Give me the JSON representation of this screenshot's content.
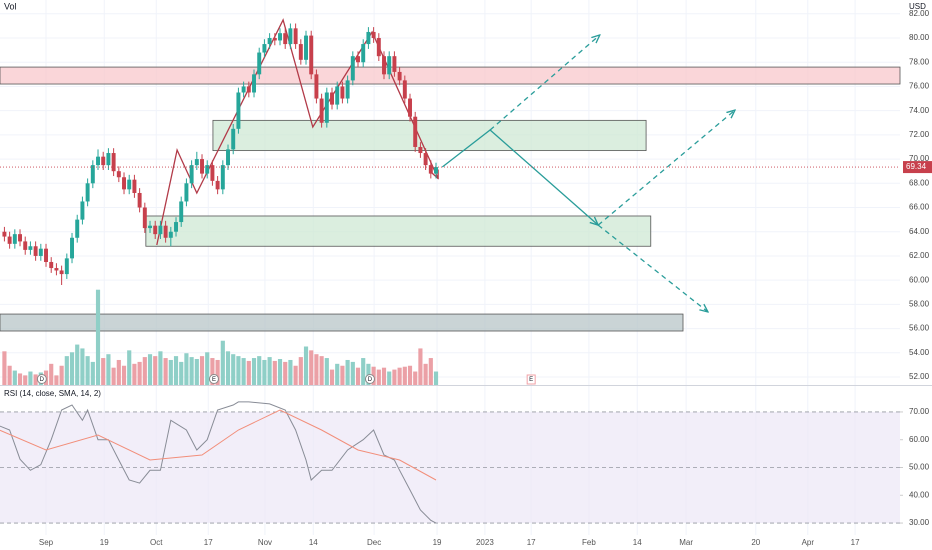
{
  "chart_data": [
    {
      "type": "candlestick",
      "label": "Vol",
      "currency": "USD",
      "up_color": "#26a69a",
      "down_color": "#c7404c",
      "volume_up_color": "#8fcfc7",
      "volume_down_color": "#eba0a6",
      "x": [
        -8,
        -7,
        -6,
        -5,
        -4,
        -3,
        -2,
        -1,
        0,
        1,
        2,
        3,
        4,
        5,
        6,
        7,
        8,
        9,
        10,
        11,
        12,
        13,
        14,
        15,
        16,
        17,
        18,
        19,
        20,
        21,
        22,
        23,
        24,
        25,
        26,
        27,
        28,
        29,
        30,
        31,
        32,
        33,
        34,
        35,
        36,
        37,
        38,
        39,
        40,
        41,
        42,
        43,
        44,
        45,
        46,
        47,
        48,
        49,
        50,
        51,
        52,
        53,
        54,
        55,
        56,
        57,
        58,
        59,
        60,
        61,
        62,
        63,
        64,
        65,
        66,
        67,
        68,
        69,
        70,
        71,
        72,
        73,
        74,
        75
      ],
      "candles": [
        [
          64.0,
          64.4,
          63.2,
          63.6
        ],
        [
          63.6,
          64.0,
          62.6,
          63.0
        ],
        [
          63.0,
          64.2,
          62.6,
          63.8
        ],
        [
          63.8,
          64.2,
          62.8,
          63.2
        ],
        [
          63.2,
          63.6,
          62.1,
          62.5
        ],
        [
          62.5,
          63.2,
          62.1,
          62.8
        ],
        [
          62.8,
          63.2,
          61.6,
          62.0
        ],
        [
          62.0,
          63.0,
          61.6,
          62.6
        ],
        [
          62.6,
          63.0,
          61.1,
          61.5
        ],
        [
          61.5,
          61.9,
          60.6,
          61.0
        ],
        [
          61.0,
          61.4,
          60.4,
          60.8
        ],
        [
          60.8,
          61.2,
          59.6,
          60.5
        ],
        [
          60.5,
          62.2,
          60.1,
          61.8
        ],
        [
          61.8,
          63.9,
          61.4,
          63.5
        ],
        [
          63.5,
          65.4,
          63.1,
          65.0
        ],
        [
          65.0,
          66.9,
          64.6,
          66.5
        ],
        [
          66.5,
          68.4,
          66.1,
          68.0
        ],
        [
          68.0,
          69.9,
          67.6,
          69.5
        ],
        [
          69.5,
          70.8,
          69.1,
          70.2
        ],
        [
          70.2,
          70.6,
          69.1,
          69.5
        ],
        [
          69.5,
          70.9,
          69.1,
          70.5
        ],
        [
          70.5,
          70.9,
          68.6,
          69.0
        ],
        [
          69.0,
          69.4,
          68.1,
          68.5
        ],
        [
          68.5,
          68.9,
          67.1,
          67.5
        ],
        [
          67.5,
          68.7,
          67.1,
          68.3
        ],
        [
          68.3,
          68.7,
          66.8,
          67.2
        ],
        [
          67.2,
          67.6,
          65.6,
          66.0
        ],
        [
          66.0,
          66.4,
          63.9,
          64.3
        ],
        [
          64.3,
          64.9,
          63.9,
          64.5
        ],
        [
          64.5,
          64.9,
          63.4,
          63.8
        ],
        [
          63.8,
          64.9,
          63.4,
          64.5
        ],
        [
          64.5,
          64.9,
          63.1,
          63.5
        ],
        [
          63.5,
          64.4,
          62.8,
          64.0
        ],
        [
          64.0,
          65.2,
          63.6,
          64.8
        ],
        [
          64.8,
          66.9,
          64.4,
          66.5
        ],
        [
          66.5,
          68.4,
          66.1,
          68.0
        ],
        [
          68.0,
          69.9,
          67.6,
          69.5
        ],
        [
          69.5,
          70.6,
          69.1,
          70.0
        ],
        [
          70.0,
          70.4,
          68.4,
          68.8
        ],
        [
          68.8,
          69.9,
          68.4,
          69.5
        ],
        [
          69.5,
          69.9,
          67.8,
          68.2
        ],
        [
          68.2,
          68.6,
          67.1,
          67.5
        ],
        [
          67.5,
          69.9,
          67.1,
          69.5
        ],
        [
          69.5,
          71.2,
          69.1,
          70.8
        ],
        [
          70.8,
          72.9,
          70.4,
          72.5
        ],
        [
          72.5,
          75.9,
          72.1,
          75.5
        ],
        [
          75.5,
          76.4,
          75.1,
          76.0
        ],
        [
          76.0,
          76.4,
          75.1,
          75.5
        ],
        [
          75.5,
          77.4,
          75.1,
          77.0
        ],
        [
          77.0,
          79.2,
          76.6,
          78.8
        ],
        [
          78.8,
          79.9,
          78.4,
          79.5
        ],
        [
          79.5,
          80.4,
          79.1,
          80.0
        ],
        [
          80.0,
          80.4,
          79.4,
          79.8
        ],
        [
          79.8,
          80.8,
          79.4,
          80.4
        ],
        [
          80.4,
          80.8,
          79.1,
          79.5
        ],
        [
          79.5,
          81.2,
          79.1,
          80.8
        ],
        [
          80.8,
          81.2,
          79.1,
          79.5
        ],
        [
          79.5,
          79.9,
          77.8,
          78.2
        ],
        [
          78.2,
          80.6,
          77.8,
          80.2
        ],
        [
          80.2,
          80.6,
          76.6,
          77.0
        ],
        [
          77.0,
          77.4,
          74.6,
          75.0
        ],
        [
          75.0,
          75.4,
          72.6,
          73.0
        ],
        [
          73.0,
          75.9,
          72.6,
          75.5
        ],
        [
          75.5,
          75.9,
          74.1,
          74.5
        ],
        [
          74.5,
          76.4,
          74.1,
          76.0
        ],
        [
          76.0,
          76.4,
          74.6,
          75.0
        ],
        [
          75.0,
          76.9,
          74.6,
          76.5
        ],
        [
          76.5,
          78.9,
          76.1,
          78.5
        ],
        [
          78.5,
          78.9,
          77.6,
          78.0
        ],
        [
          78.0,
          79.9,
          77.6,
          79.5
        ],
        [
          79.5,
          80.9,
          79.1,
          80.5
        ],
        [
          80.5,
          80.9,
          79.6,
          80.0
        ],
        [
          80.0,
          80.4,
          78.1,
          78.5
        ],
        [
          78.5,
          78.9,
          76.6,
          77.0
        ],
        [
          77.0,
          78.9,
          76.6,
          78.5
        ],
        [
          78.5,
          78.9,
          76.8,
          77.2
        ],
        [
          77.2,
          77.6,
          76.1,
          76.5
        ],
        [
          76.5,
          76.9,
          74.6,
          75.0
        ],
        [
          75.0,
          75.4,
          73.1,
          73.5
        ],
        [
          73.5,
          73.9,
          70.6,
          71.0
        ],
        [
          71.0,
          71.4,
          70.1,
          70.5
        ],
        [
          70.5,
          70.9,
          69.1,
          69.5
        ],
        [
          69.5,
          69.9,
          68.4,
          68.8
        ],
        [
          68.8,
          69.7,
          68.4,
          69.34
        ]
      ],
      "volume": [
        3.5,
        2.0,
        1.5,
        1.2,
        1.0,
        1.4,
        1.1,
        1.3,
        1.5,
        2.2,
        1.0,
        2.0,
        3.0,
        3.4,
        4.2,
        3.8,
        3.0,
        2.4,
        9.9,
        2.8,
        3.2,
        1.8,
        2.6,
        2.0,
        3.6,
        2.2,
        2.4,
        2.9,
        3.2,
        3.0,
        3.5,
        2.8,
        2.6,
        3.0,
        2.4,
        3.3,
        2.9,
        2.7,
        3.0,
        3.4,
        2.8,
        2.6,
        4.6,
        3.5,
        3.2,
        3.0,
        2.8,
        2.5,
        2.8,
        3.0,
        2.6,
        2.9,
        2.5,
        2.7,
        2.4,
        2.6,
        2.0,
        2.9,
        4.0,
        3.6,
        3.2,
        3.0,
        2.8,
        1.6,
        2.2,
        2.0,
        2.6,
        2.4,
        1.8,
        2.8,
        2.2,
        1.9,
        1.6,
        1.8,
        1.4,
        1.6,
        1.8,
        1.9,
        2.0,
        1.4,
        3.8,
        2.2,
        2.8,
        1.4
      ],
      "volume_ylim": [
        0,
        40
      ],
      "last_price": 69.34,
      "xlim": [
        -8.85,
        164.23
      ],
      "xticks": [
        {
          "value": 0,
          "label": "Sep"
        },
        {
          "value": 11.2,
          "label": "19"
        },
        {
          "value": 21.2,
          "label": "Oct"
        },
        {
          "value": 31.2,
          "label": "17"
        },
        {
          "value": 42.1,
          "label": "Nov"
        },
        {
          "value": 51.4,
          "label": "14"
        },
        {
          "value": 63.1,
          "label": "Dec"
        },
        {
          "value": 75.2,
          "label": "19"
        },
        {
          "value": 84.4,
          "label": "2023"
        },
        {
          "value": 93.3,
          "label": "17"
        },
        {
          "value": 104.4,
          "label": "Feb"
        },
        {
          "value": 113.7,
          "label": "14"
        },
        {
          "value": 123.1,
          "label": "Mar"
        },
        {
          "value": 136.5,
          "label": "20"
        },
        {
          "value": 146.5,
          "label": "Apr"
        },
        {
          "value": 155.6,
          "label": "17"
        }
      ],
      "ylim": [
        51.34,
        83.14
      ],
      "yticks": [
        {
          "value": 52,
          "label": "52.00"
        },
        {
          "value": 54,
          "label": "54.00"
        },
        {
          "value": 56,
          "label": "56.00"
        },
        {
          "value": 58,
          "label": "58.00"
        },
        {
          "value": 60,
          "label": "60.00"
        },
        {
          "value": 62,
          "label": "62.00"
        },
        {
          "value": 64,
          "label": "64.00"
        },
        {
          "value": 66,
          "label": "66.00"
        },
        {
          "value": 68,
          "label": "68.00"
        },
        {
          "value": 70,
          "label": "70.00"
        },
        {
          "value": 72,
          "label": "72.00"
        },
        {
          "value": 74,
          "label": "74.00"
        },
        {
          "value": 76,
          "label": "76.00"
        },
        {
          "value": 78,
          "label": "78.00"
        },
        {
          "value": 80,
          "label": "80.00"
        },
        {
          "value": 82,
          "label": "82.00"
        }
      ],
      "grid": true,
      "zones": [
        {
          "x": [
            -8.85,
            164.23
          ],
          "y": [
            76.2,
            77.6
          ],
          "color": "#f8c8cc"
        },
        {
          "x": [
            32.1,
            115.4
          ],
          "y": [
            70.7,
            73.2
          ],
          "color": "#cfe8d4"
        },
        {
          "x": [
            19.2,
            116.3
          ],
          "y": [
            62.8,
            65.3
          ],
          "color": "#cfe8d4"
        },
        {
          "x": [
            -8.85,
            122.5
          ],
          "y": [
            55.8,
            57.2
          ],
          "color": "#b8c6c8"
        }
      ],
      "drawings": [
        {
          "points": [
            [
              21.3,
              62.9
            ],
            [
              25.2,
              70.75
            ],
            [
              29.0,
              67.2
            ],
            [
              45.6,
              81.5
            ],
            [
              51.3,
              72.65
            ],
            [
              62.7,
              80.5
            ],
            [
              75.4,
              68.4
            ]
          ],
          "color": "#b23a48",
          "dashed": false
        },
        {
          "points": [
            [
              76.2,
              69.35
            ],
            [
              85.4,
              72.4
            ],
            [
              106.2,
              64.55
            ]
          ],
          "color": "#2a9d9a",
          "dashed": false
        },
        {
          "points": [
            [
              85.4,
              72.4
            ],
            [
              106.5,
              80.25
            ]
          ],
          "color": "#2a9d9a",
          "dashed": true
        },
        {
          "points": [
            [
              106.2,
              64.55
            ],
            [
              132.5,
              74.05
            ]
          ],
          "color": "#2a9d9a",
          "dashed": true
        },
        {
          "points": [
            [
              106.2,
              64.55
            ],
            [
              127.3,
              57.37
            ]
          ],
          "color": "#2a9d9a",
          "dashed": true
        }
      ],
      "events": [
        {
          "x": -0.8,
          "label": "D"
        },
        {
          "x": 32.3,
          "label": "E"
        },
        {
          "x": 62.3,
          "label": "D"
        },
        {
          "x": 93.3,
          "label": "E"
        }
      ]
    },
    {
      "type": "line",
      "title": "RSI (14, close, SMA, 14, 2)",
      "ylim": [
        25.7,
        79.7
      ],
      "yticks": [
        {
          "value": 30,
          "label": "30.00"
        },
        {
          "value": 40,
          "label": "40.00"
        },
        {
          "value": 50,
          "label": "50.00"
        },
        {
          "value": 60,
          "label": "60.00"
        },
        {
          "value": 70,
          "label": "70.00"
        }
      ],
      "levels": [
        70,
        50,
        30
      ],
      "band": [
        30,
        70
      ],
      "band_color": "#ede7f6",
      "series": [
        {
          "color": "#888c96",
          "x": [
            -9,
            -7,
            -5,
            -3,
            -1,
            1,
            3,
            5,
            7,
            8,
            10,
            12,
            14,
            16,
            18,
            20,
            22,
            24,
            27,
            29,
            31,
            33,
            36,
            37,
            39,
            43,
            46,
            48,
            50,
            51,
            53,
            55,
            58,
            61,
            63,
            65,
            67,
            68,
            70,
            72,
            74,
            75
          ],
          "values": [
            65,
            63.5,
            53,
            49,
            51,
            60,
            70.7,
            72.5,
            67,
            70.7,
            60,
            60,
            52.7,
            45.5,
            44.4,
            49,
            49,
            67,
            63.5,
            56.3,
            60,
            70.7,
            72.5,
            73.6,
            73.6,
            72.9,
            70.7,
            63.5,
            52.7,
            45.5,
            49,
            49,
            56.3,
            60,
            63.5,
            54.5,
            52.7,
            49,
            41.9,
            34.7,
            31,
            30
          ]
        },
        {
          "color": "#f28e7a",
          "x": [
            -9,
            0,
            10,
            20,
            30,
            37,
            45,
            53,
            60,
            68,
            75
          ],
          "values": [
            63.5,
            56.3,
            61.7,
            52.7,
            54.5,
            63.5,
            70.7,
            63.5,
            56.3,
            52.7,
            45.5
          ]
        }
      ]
    }
  ]
}
